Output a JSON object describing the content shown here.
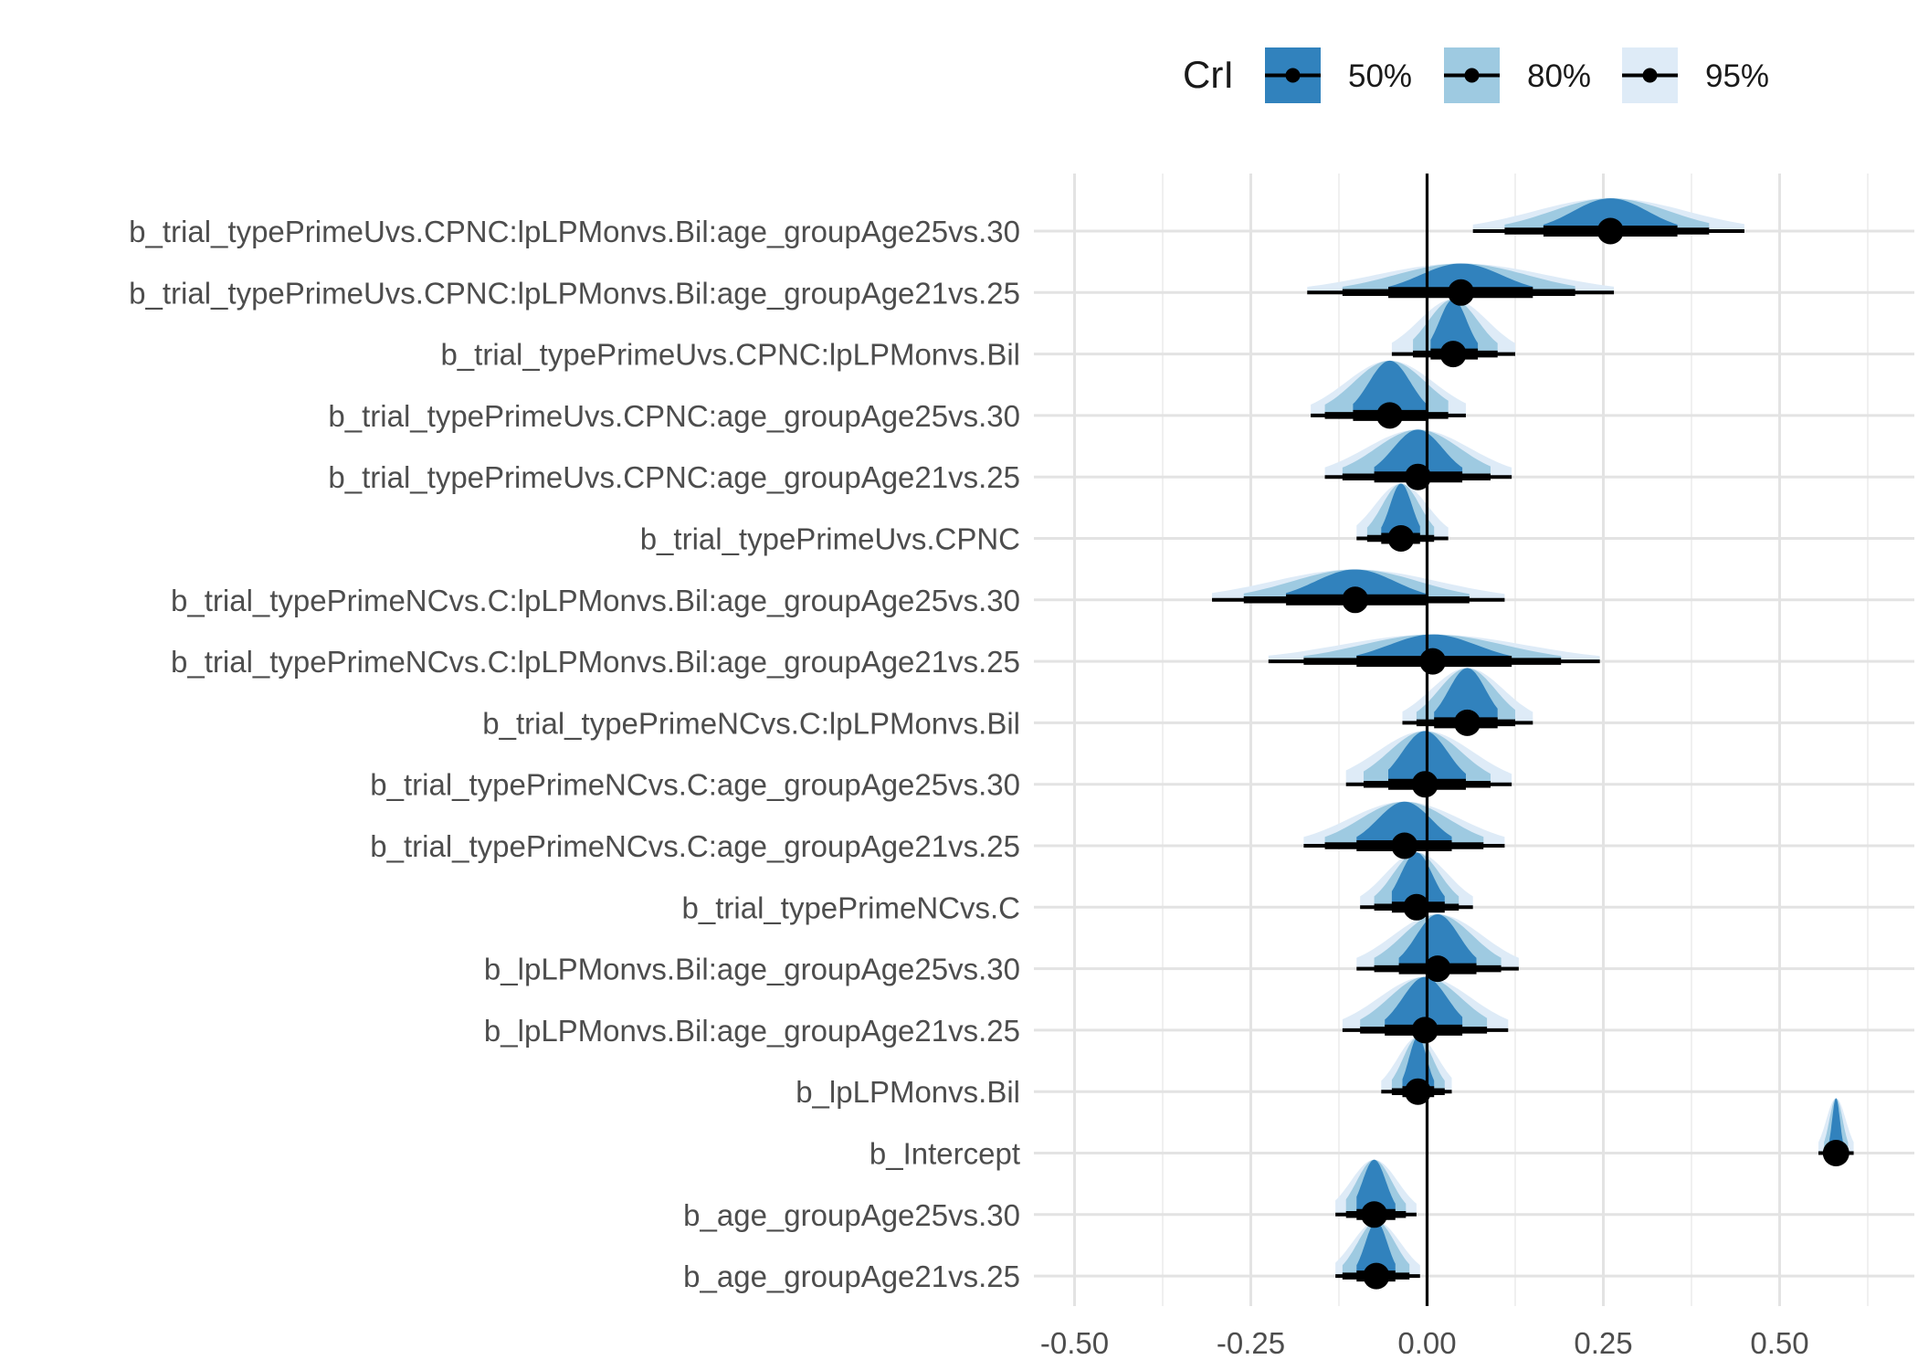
{
  "chart_data": {
    "type": "interval",
    "x": {
      "ticks": [
        -0.5,
        -0.25,
        0.0,
        0.25,
        0.5
      ],
      "tick_labels": [
        "-0.50",
        "-0.25",
        "0.00",
        "0.25",
        "0.50"
      ],
      "range": [
        -0.54,
        0.69
      ],
      "reference_line": 0.0,
      "grid": true
    },
    "legend": {
      "title": "CrI",
      "position": "top-right",
      "entries": [
        {
          "label": "50%",
          "color": "#3182bd"
        },
        {
          "label": "80%",
          "color": "#9ecae1"
        },
        {
          "label": "95%",
          "color": "#deebf7"
        }
      ]
    },
    "parameters": [
      {
        "name": "b_trial_typePrimeUvs.CPNC:lpLPMonvs.Bil:age_groupAge25vs.30",
        "median": 0.26,
        "ci50": [
          0.165,
          0.355
        ],
        "ci80": [
          0.11,
          0.4
        ],
        "ci95": [
          0.065,
          0.45
        ]
      },
      {
        "name": "b_trial_typePrimeUvs.CPNC:lpLPMonvs.Bil:age_groupAge21vs.25",
        "median": 0.048,
        "ci50": [
          -0.055,
          0.15
        ],
        "ci80": [
          -0.12,
          0.21
        ],
        "ci95": [
          -0.17,
          0.265
        ]
      },
      {
        "name": "b_trial_typePrimeUvs.CPNC:lpLPMonvs.Bil",
        "median": 0.037,
        "ci50": [
          0.005,
          0.072
        ],
        "ci80": [
          -0.02,
          0.1
        ],
        "ci95": [
          -0.05,
          0.125
        ]
      },
      {
        "name": "b_trial_typePrimeUvs.CPNC:age_groupAge25vs.30",
        "median": -0.053,
        "ci50": [
          -0.105,
          0.0
        ],
        "ci80": [
          -0.145,
          0.03
        ],
        "ci95": [
          -0.165,
          0.055
        ]
      },
      {
        "name": "b_trial_typePrimeUvs.CPNC:age_groupAge21vs.25",
        "median": -0.013,
        "ci50": [
          -0.075,
          0.05
        ],
        "ci80": [
          -0.12,
          0.09
        ],
        "ci95": [
          -0.145,
          0.12
        ]
      },
      {
        "name": "b_trial_typePrimeUvs.CPNC",
        "median": -0.037,
        "ci50": [
          -0.065,
          -0.01
        ],
        "ci80": [
          -0.085,
          0.01
        ],
        "ci95": [
          -0.1,
          0.03
        ]
      },
      {
        "name": "b_trial_typePrimeNCvs.C:lpLPMonvs.Bil:age_groupAge25vs.30",
        "median": -0.102,
        "ci50": [
          -0.2,
          0.0
        ],
        "ci80": [
          -0.26,
          0.06
        ],
        "ci95": [
          -0.305,
          0.11
        ]
      },
      {
        "name": "b_trial_typePrimeNCvs.C:lpLPMonvs.Bil:age_groupAge21vs.25",
        "median": 0.008,
        "ci50": [
          -0.1,
          0.12
        ],
        "ci80": [
          -0.175,
          0.19
        ],
        "ci95": [
          -0.225,
          0.245
        ]
      },
      {
        "name": "b_trial_typePrimeNCvs.C:lpLPMonvs.Bil",
        "median": 0.057,
        "ci50": [
          0.01,
          0.1
        ],
        "ci80": [
          -0.015,
          0.125
        ],
        "ci95": [
          -0.035,
          0.15
        ]
      },
      {
        "name": "b_trial_typePrimeNCvs.C:age_groupAge25vs.30",
        "median": -0.003,
        "ci50": [
          -0.055,
          0.055
        ],
        "ci80": [
          -0.09,
          0.09
        ],
        "ci95": [
          -0.115,
          0.12
        ]
      },
      {
        "name": "b_trial_typePrimeNCvs.C:age_groupAge21vs.25",
        "median": -0.032,
        "ci50": [
          -0.1,
          0.035
        ],
        "ci80": [
          -0.145,
          0.08
        ],
        "ci95": [
          -0.175,
          0.11
        ]
      },
      {
        "name": "b_trial_typePrimeNCvs.C",
        "median": -0.015,
        "ci50": [
          -0.05,
          0.025
        ],
        "ci80": [
          -0.075,
          0.045
        ],
        "ci95": [
          -0.095,
          0.065
        ]
      },
      {
        "name": "b_lpLPMonvs.Bil:age_groupAge25vs.30",
        "median": 0.015,
        "ci50": [
          -0.04,
          0.07
        ],
        "ci80": [
          -0.075,
          0.105
        ],
        "ci95": [
          -0.1,
          0.13
        ]
      },
      {
        "name": "b_lpLPMonvs.Bil:age_groupAge21vs.25",
        "median": -0.003,
        "ci50": [
          -0.06,
          0.05
        ],
        "ci80": [
          -0.095,
          0.085
        ],
        "ci95": [
          -0.12,
          0.115
        ]
      },
      {
        "name": "b_lpLPMonvs.Bil",
        "median": -0.013,
        "ci50": [
          -0.035,
          0.01
        ],
        "ci80": [
          -0.05,
          0.025
        ],
        "ci95": [
          -0.065,
          0.035
        ]
      },
      {
        "name": "b_Intercept",
        "median": 0.58,
        "ci50": [
          0.57,
          0.59
        ],
        "ci80": [
          0.563,
          0.597
        ],
        "ci95": [
          0.555,
          0.605
        ]
      },
      {
        "name": "b_age_groupAge25vs.30",
        "median": -0.075,
        "ci50": [
          -0.1,
          -0.045
        ],
        "ci80": [
          -0.115,
          -0.03
        ],
        "ci95": [
          -0.13,
          -0.015
        ]
      },
      {
        "name": "b_age_groupAge21vs.25",
        "median": -0.072,
        "ci50": [
          -0.1,
          -0.045
        ],
        "ci80": [
          -0.12,
          -0.025
        ],
        "ci95": [
          -0.13,
          -0.01
        ]
      }
    ]
  }
}
